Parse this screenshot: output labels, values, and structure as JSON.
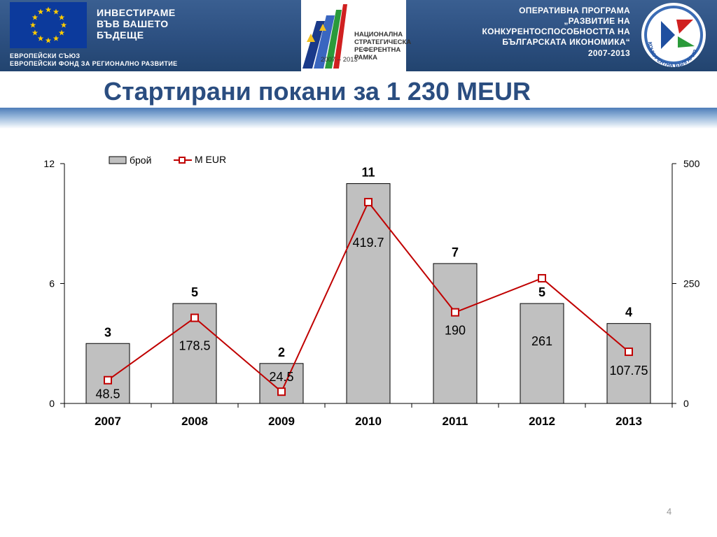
{
  "header": {
    "eu_motto": [
      "ИНВЕСТИРАМЕ",
      "ВЪВ ВАШЕТО",
      "БЪДЕЩЕ"
    ],
    "eu_fund": [
      "ЕВРОПЕЙСКИ СЪЮЗ",
      "ЕВРОПЕЙСКИ ФОНД ЗА РЕГИОНАЛНО РАЗВИТИЕ"
    ],
    "nsrf": [
      "НАЦИОНАЛНА",
      "СТРАТЕГИЧЕСКА",
      "РЕФЕРЕНТНА РАМКА",
      "2007 – 2013"
    ],
    "op_title": [
      "ОПЕРАТИВНА ПРОГРАМА",
      "„РАЗВИТИЕ НА",
      "КОНКУРЕНТОСПОСОБНОСТТА НА",
      "БЪЛГАРСКАТА ИКОНОМИКА“",
      "2007-2013"
    ],
    "op_logo_text": "КОНКУРЕНТНА БЪЛГАРИЯ",
    "colors": {
      "banner": "#2c4f80",
      "eu_flag": "#0c3a9c",
      "eu_star": "#ffcc00"
    },
    "icons": [
      "eu-flag-icon",
      "nsrf-logo-icon",
      "op-competitiveness-logo-icon"
    ]
  },
  "slide": {
    "title": "Стартирани покани за 1 230 MEUR",
    "page_number": "4"
  },
  "chart_data": {
    "type": "bar",
    "categories": [
      "2007",
      "2008",
      "2009",
      "2010",
      "2011",
      "2012",
      "2013"
    ],
    "series": [
      {
        "name": "брой",
        "type": "bar",
        "axis": "left",
        "color": "#c0c0c0",
        "values": [
          3,
          5,
          2,
          11,
          7,
          5,
          4
        ],
        "labels": [
          "3",
          "5",
          "2",
          "11",
          "7",
          "5",
          "4"
        ]
      },
      {
        "name": "M EUR",
        "type": "line",
        "axis": "right",
        "color": "#c00000",
        "values": [
          48.5,
          178.5,
          24.5,
          419.7,
          190,
          261,
          107.75
        ],
        "labels": [
          "48.5",
          "178.5",
          "24.5",
          "419.7",
          "190",
          "261",
          "107.75"
        ]
      }
    ],
    "left_axis": {
      "min": 0,
      "max": 12,
      "ticks": [
        "0",
        "6",
        "12"
      ]
    },
    "right_axis": {
      "min": 0,
      "max": 500,
      "ticks": [
        "0",
        "250",
        "500"
      ]
    },
    "legend_position": "top-left",
    "grid": false,
    "title": "",
    "xlabel": "",
    "ylabel": ""
  }
}
